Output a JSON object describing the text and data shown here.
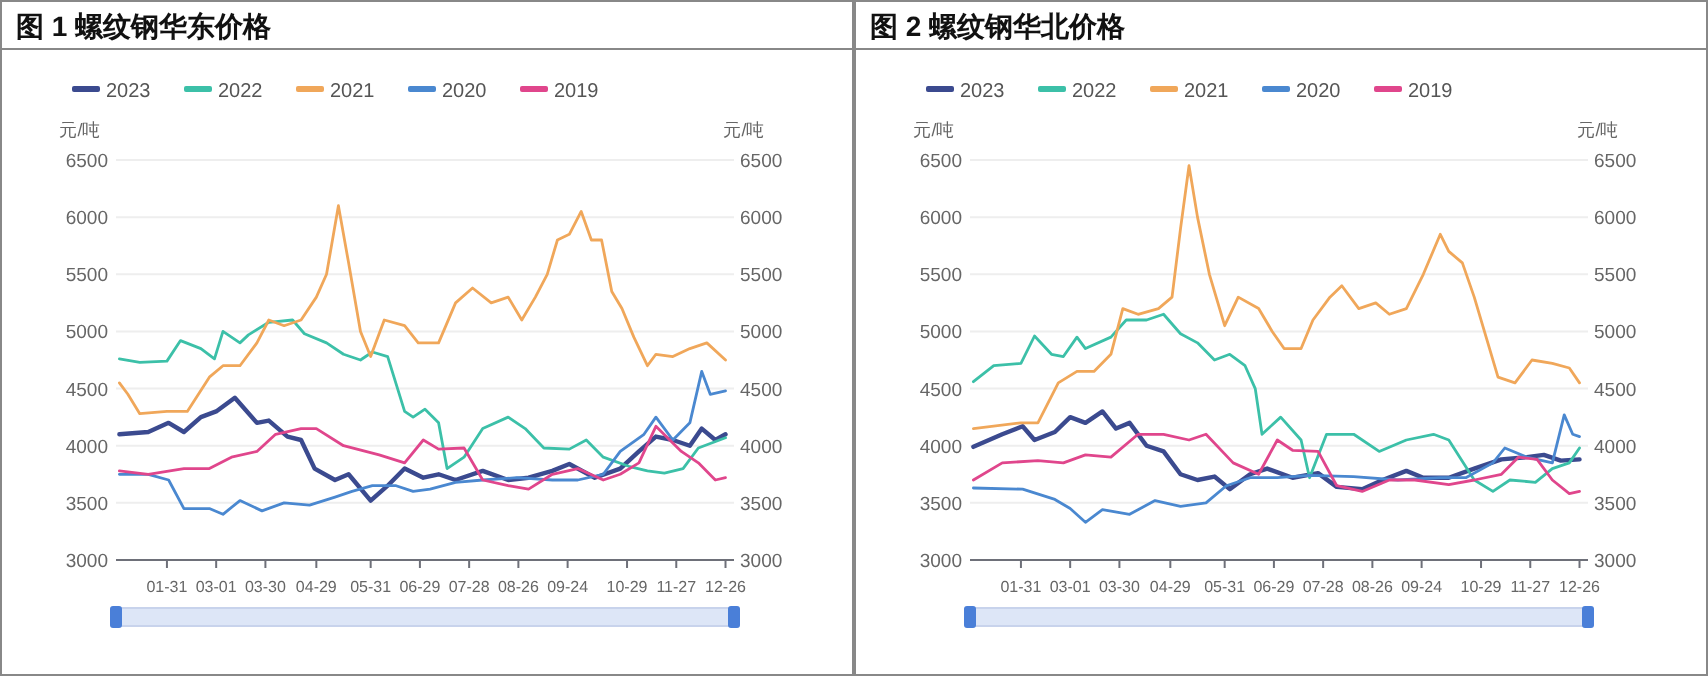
{
  "chart_data": [
    {
      "type": "line",
      "title": "图 1 螺纹钢华东价格",
      "ylabel": "元/吨",
      "y2label": "元/吨",
      "legend": "top left",
      "grid": "y",
      "marker": "none",
      "line_style": "solid",
      "xlim": [
        "--01-01",
        "--12-31"
      ],
      "xticks": [
        {
          "value": "--01-31",
          "label": "01-31"
        },
        {
          "value": "--03-01",
          "label": "03-01"
        },
        {
          "value": "--03-30",
          "label": "03-30"
        },
        {
          "value": "--04-29",
          "label": "04-29"
        },
        {
          "value": "--05-31",
          "label": "05-31"
        },
        {
          "value": "--06-29",
          "label": "06-29"
        },
        {
          "value": "--07-28",
          "label": "07-28"
        },
        {
          "value": "--08-26",
          "label": "08-26"
        },
        {
          "value": "--09-24",
          "label": "09-24"
        },
        {
          "value": "--10-29",
          "label": "10-29"
        },
        {
          "value": "--11-27",
          "label": "11-27"
        },
        {
          "value": "--12-26",
          "label": "12-26"
        }
      ],
      "ylim": [
        3000,
        6500
      ],
      "yticks": [
        3000,
        3500,
        4000,
        4500,
        5000,
        5500,
        6000,
        6500
      ],
      "y2lim": [
        3000,
        6500
      ],
      "y2ticks": [
        3000,
        3500,
        4000,
        4500,
        5000,
        5500,
        6000,
        6500
      ],
      "series": [
        {
          "name": "2023",
          "color": "#3b4a8f",
          "x": [
            "--01-03",
            "--01-20",
            "--02-01",
            "--02-10",
            "--02-20",
            "--03-01",
            "--03-12",
            "--03-25",
            "--04-01",
            "--04-12",
            "--04-20",
            "--04-28",
            "--05-10",
            "--05-18",
            "--05-31",
            "--06-10",
            "--06-20",
            "--07-01",
            "--07-10",
            "--07-20",
            "--08-05",
            "--08-20",
            "--09-01",
            "--09-15",
            "--09-25",
            "--10-10",
            "--10-25",
            "--11-05",
            "--11-15",
            "--11-25",
            "--12-05",
            "--12-12",
            "--12-20",
            "--12-26"
          ],
          "values": [
            4100,
            4120,
            4200,
            4120,
            4250,
            4300,
            4420,
            4200,
            4220,
            4080,
            4050,
            3800,
            3700,
            3750,
            3520,
            3650,
            3800,
            3720,
            3750,
            3700,
            3780,
            3700,
            3720,
            3780,
            3840,
            3720,
            3800,
            3950,
            4080,
            4050,
            4000,
            4150,
            4050,
            4100
          ]
        },
        {
          "name": "2022",
          "color": "#3cc0a8",
          "x": [
            "--01-03",
            "--01-15",
            "--01-31",
            "--02-08",
            "--02-20",
            "--02-28",
            "--03-05",
            "--03-15",
            "--03-20",
            "--04-01",
            "--04-15",
            "--04-22",
            "--05-05",
            "--05-15",
            "--05-25",
            "--06-01",
            "--06-10",
            "--06-20",
            "--06-25",
            "--07-02",
            "--07-10",
            "--07-15",
            "--07-25",
            "--08-05",
            "--08-20",
            "--08-30",
            "--09-10",
            "--09-25",
            "--10-05",
            "--10-15",
            "--10-30",
            "--11-10",
            "--11-20",
            "--12-01",
            "--12-10",
            "--12-26"
          ],
          "values": [
            4760,
            4730,
            4740,
            4920,
            4850,
            4760,
            5000,
            4900,
            4970,
            5080,
            5100,
            4980,
            4900,
            4800,
            4750,
            4820,
            4780,
            4300,
            4250,
            4320,
            4200,
            3800,
            3900,
            4150,
            4250,
            4150,
            3980,
            3970,
            4050,
            3900,
            3820,
            3780,
            3760,
            3800,
            3980,
            4070
          ]
        },
        {
          "name": "2021",
          "color": "#f0a75a",
          "x": [
            "--01-03",
            "--01-08",
            "--01-15",
            "--01-31",
            "--02-12",
            "--02-25",
            "--03-05",
            "--03-15",
            "--03-25",
            "--04-01",
            "--04-10",
            "--04-20",
            "--04-29",
            "--05-05",
            "--05-12",
            "--05-18",
            "--05-25",
            "--05-31",
            "--06-08",
            "--06-20",
            "--06-28",
            "--07-10",
            "--07-20",
            "--07-30",
            "--08-10",
            "--08-20",
            "--08-28",
            "--09-05",
            "--09-12",
            "--09-18",
            "--09-25",
            "--10-02",
            "--10-08",
            "--10-14",
            "--10-20",
            "--10-26",
            "--11-02",
            "--11-10",
            "--11-15",
            "--11-25",
            "--12-05",
            "--12-15",
            "--12-26"
          ],
          "values": [
            4550,
            4450,
            4280,
            4300,
            4300,
            4600,
            4700,
            4700,
            4900,
            5100,
            5050,
            5100,
            5300,
            5500,
            6100,
            5600,
            5000,
            4780,
            5100,
            5050,
            4900,
            4900,
            5250,
            5380,
            5250,
            5300,
            5100,
            5300,
            5500,
            5800,
            5850,
            6050,
            5800,
            5800,
            5350,
            5200,
            4950,
            4700,
            4800,
            4780,
            4850,
            4900,
            4750
          ]
        },
        {
          "name": "2020",
          "color": "#4a88d0",
          "x": [
            "--01-03",
            "--01-20",
            "--02-01",
            "--02-10",
            "--02-25",
            "--03-05",
            "--03-15",
            "--03-28",
            "--04-10",
            "--04-25",
            "--05-10",
            "--05-20",
            "--06-01",
            "--06-15",
            "--06-25",
            "--07-05",
            "--07-20",
            "--08-05",
            "--08-25",
            "--09-15",
            "--09-30",
            "--10-15",
            "--10-25",
            "--11-08",
            "--11-15",
            "--11-25",
            "--12-05",
            "--12-12",
            "--12-17",
            "--12-26"
          ],
          "values": [
            3750,
            3750,
            3700,
            3450,
            3450,
            3400,
            3520,
            3430,
            3500,
            3480,
            3550,
            3600,
            3650,
            3650,
            3600,
            3620,
            3680,
            3700,
            3720,
            3700,
            3700,
            3750,
            3950,
            4100,
            4250,
            4050,
            4200,
            4650,
            4450,
            4480
          ]
        },
        {
          "name": "2019",
          "color": "#e0468c",
          "x": [
            "--01-03",
            "--01-20",
            "--02-10",
            "--02-25",
            "--03-10",
            "--03-25",
            "--04-05",
            "--04-20",
            "--04-29",
            "--05-15",
            "--06-05",
            "--06-20",
            "--07-01",
            "--07-10",
            "--07-25",
            "--08-05",
            "--08-20",
            "--09-01",
            "--09-15",
            "--09-30",
            "--10-15",
            "--10-25",
            "--11-05",
            "--11-15",
            "--11-30",
            "--12-10",
            "--12-20",
            "--12-26"
          ],
          "values": [
            3780,
            3750,
            3800,
            3800,
            3900,
            3950,
            4100,
            4150,
            4150,
            4000,
            3920,
            3850,
            4050,
            3970,
            3980,
            3700,
            3650,
            3620,
            3750,
            3800,
            3700,
            3750,
            3850,
            4170,
            3950,
            3850,
            3700,
            3720
          ]
        }
      ]
    },
    {
      "type": "line",
      "title": "图 2 螺纹钢华北价格",
      "ylabel": "元/吨",
      "y2label": "元/吨",
      "legend": "top left",
      "grid": "y",
      "marker": "none",
      "line_style": "solid",
      "xlim": [
        "--01-01",
        "--12-31"
      ],
      "xticks": [
        {
          "value": "--01-31",
          "label": "01-31"
        },
        {
          "value": "--03-01",
          "label": "03-01"
        },
        {
          "value": "--03-30",
          "label": "03-30"
        },
        {
          "value": "--04-29",
          "label": "04-29"
        },
        {
          "value": "--05-31",
          "label": "05-31"
        },
        {
          "value": "--06-29",
          "label": "06-29"
        },
        {
          "value": "--07-28",
          "label": "07-28"
        },
        {
          "value": "--08-26",
          "label": "08-26"
        },
        {
          "value": "--09-24",
          "label": "09-24"
        },
        {
          "value": "--10-29",
          "label": "10-29"
        },
        {
          "value": "--11-27",
          "label": "11-27"
        },
        {
          "value": "--12-26",
          "label": "12-26"
        }
      ],
      "ylim": [
        3000,
        6500
      ],
      "yticks": [
        3000,
        3500,
        4000,
        4500,
        5000,
        5500,
        6000,
        6500
      ],
      "y2lim": [
        3000,
        6500
      ],
      "y2ticks": [
        3000,
        3500,
        4000,
        4500,
        5000,
        5500,
        6000,
        6500
      ],
      "series": [
        {
          "name": "2023",
          "color": "#3b4a8f",
          "x": [
            "--01-03",
            "--01-20",
            "--02-01",
            "--02-08",
            "--02-20",
            "--03-01",
            "--03-10",
            "--03-20",
            "--03-28",
            "--04-05",
            "--04-15",
            "--04-25",
            "--05-05",
            "--05-15",
            "--05-25",
            "--06-03",
            "--06-15",
            "--06-25",
            "--07-10",
            "--07-25",
            "--08-05",
            "--08-20",
            "--09-01",
            "--09-15",
            "--09-25",
            "--10-10",
            "--10-25",
            "--11-10",
            "--11-25",
            "--12-05",
            "--12-15",
            "--12-26"
          ],
          "values": [
            3990,
            4100,
            4170,
            4050,
            4120,
            4250,
            4200,
            4300,
            4150,
            4200,
            4000,
            3950,
            3750,
            3700,
            3730,
            3620,
            3750,
            3800,
            3720,
            3760,
            3640,
            3620,
            3700,
            3780,
            3720,
            3720,
            3800,
            3880,
            3900,
            3920,
            3870,
            3880
          ]
        },
        {
          "name": "2022",
          "color": "#3cc0a8",
          "x": [
            "--01-03",
            "--01-15",
            "--01-31",
            "--02-08",
            "--02-18",
            "--02-25",
            "--03-05",
            "--03-10",
            "--03-25",
            "--04-03",
            "--04-15",
            "--04-25",
            "--05-05",
            "--05-15",
            "--05-25",
            "--06-03",
            "--06-12",
            "--06-18",
            "--06-22",
            "--07-03",
            "--07-15",
            "--07-20",
            "--07-30",
            "--08-15",
            "--08-30",
            "--09-15",
            "--10-01",
            "--10-10",
            "--10-25",
            "--11-05",
            "--11-15",
            "--11-30",
            "--12-10",
            "--12-20",
            "--12-26"
          ],
          "values": [
            4560,
            4700,
            4720,
            4960,
            4800,
            4780,
            4950,
            4850,
            4950,
            5100,
            5100,
            5150,
            4980,
            4900,
            4750,
            4800,
            4700,
            4500,
            4100,
            4250,
            4050,
            3720,
            4100,
            4100,
            3950,
            4050,
            4100,
            4050,
            3700,
            3600,
            3700,
            3680,
            3800,
            3850,
            3980
          ]
        },
        {
          "name": "2021",
          "color": "#f0a75a",
          "x": [
            "--01-03",
            "--01-31",
            "--02-10",
            "--02-22",
            "--03-05",
            "--03-15",
            "--03-25",
            "--04-01",
            "--04-10",
            "--04-22",
            "--04-30",
            "--05-05",
            "--05-10",
            "--05-15",
            "--05-22",
            "--05-31",
            "--06-08",
            "--06-20",
            "--06-28",
            "--07-05",
            "--07-15",
            "--07-22",
            "--08-01",
            "--08-08",
            "--08-18",
            "--08-28",
            "--09-05",
            "--09-15",
            "--09-25",
            "--10-05",
            "--10-10",
            "--10-18",
            "--10-25",
            "--11-01",
            "--11-08",
            "--11-18",
            "--11-28",
            "--12-10",
            "--12-20",
            "--12-26"
          ],
          "values": [
            4150,
            4200,
            4200,
            4550,
            4650,
            4650,
            4800,
            5200,
            5150,
            5200,
            5300,
            5900,
            6450,
            6000,
            5500,
            5050,
            5300,
            5200,
            5000,
            4850,
            4850,
            5100,
            5300,
            5400,
            5200,
            5250,
            5150,
            5200,
            5500,
            5850,
            5700,
            5600,
            5300,
            4950,
            4600,
            4550,
            4750,
            4720,
            4680,
            4550
          ]
        },
        {
          "name": "2020",
          "color": "#4a88d0",
          "x": [
            "--01-03",
            "--02-01",
            "--02-20",
            "--03-01",
            "--03-10",
            "--03-20",
            "--04-05",
            "--04-20",
            "--05-05",
            "--05-20",
            "--06-01",
            "--06-15",
            "--07-01",
            "--07-20",
            "--08-15",
            "--09-10",
            "--10-05",
            "--10-20",
            "--11-05",
            "--11-12",
            "--11-25",
            "--12-10",
            "--12-17",
            "--12-22",
            "--12-26"
          ],
          "values": [
            3630,
            3620,
            3530,
            3450,
            3330,
            3440,
            3400,
            3520,
            3470,
            3500,
            3650,
            3720,
            3720,
            3740,
            3730,
            3700,
            3720,
            3720,
            3850,
            3980,
            3900,
            3850,
            4270,
            4100,
            4080
          ]
        },
        {
          "name": "2019",
          "color": "#e0468c",
          "x": [
            "--01-03",
            "--01-20",
            "--02-10",
            "--02-25",
            "--03-10",
            "--03-25",
            "--04-10",
            "--04-25",
            "--05-10",
            "--05-20",
            "--06-05",
            "--06-20",
            "--07-01",
            "--07-10",
            "--07-25",
            "--08-05",
            "--08-20",
            "--09-05",
            "--09-20",
            "--10-10",
            "--10-25",
            "--11-10",
            "--11-20",
            "--12-01",
            "--12-10",
            "--12-20",
            "--12-26"
          ],
          "values": [
            3700,
            3850,
            3870,
            3850,
            3920,
            3900,
            4100,
            4100,
            4050,
            4100,
            3850,
            3750,
            4050,
            3960,
            3950,
            3650,
            3600,
            3700,
            3700,
            3660,
            3700,
            3750,
            3900,
            3880,
            3700,
            3580,
            3600
          ]
        }
      ]
    }
  ]
}
